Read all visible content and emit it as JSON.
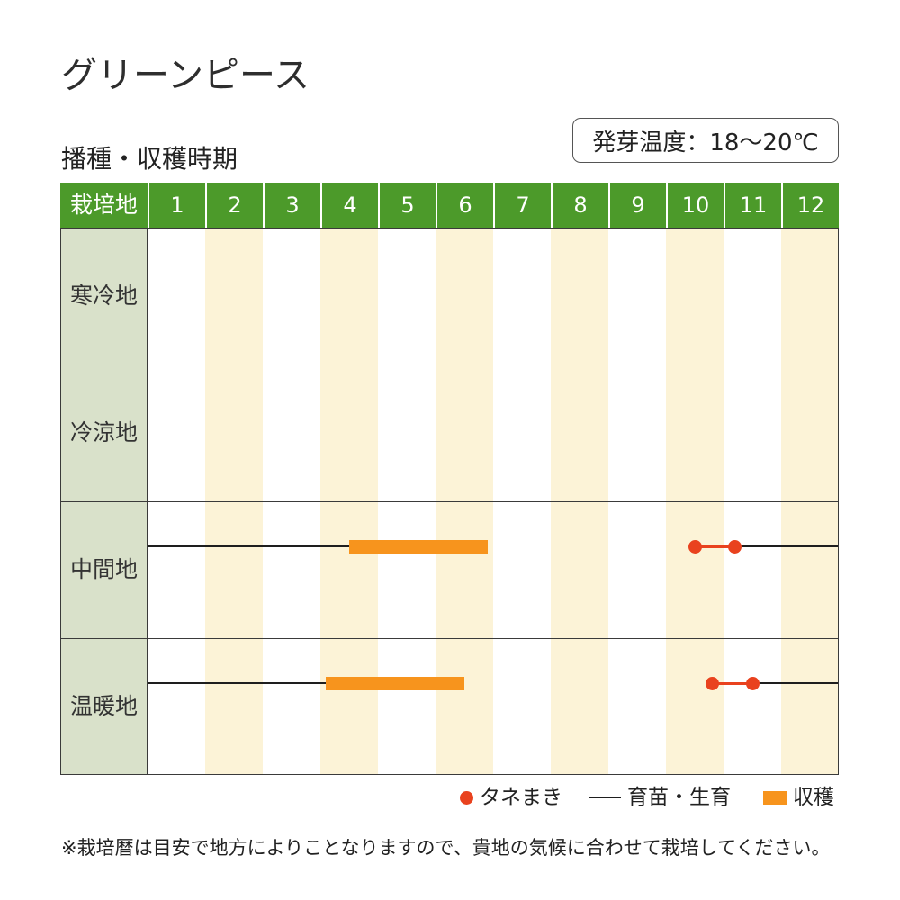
{
  "title": "グリーンピース",
  "germination_temp": "発芽温度：18～20℃",
  "colors": {
    "header": "#4c9a2a",
    "header_text": "#ffffff",
    "region_column": "#d9e1ca",
    "month_stripe": "#fcf3d7",
    "grid": "#3a3a3a"
  },
  "chart_data": {
    "type": "bar",
    "title": "播種・収穫時期",
    "row_header": "栽培地",
    "x_tick_labels": [
      "1",
      "2",
      "3",
      "4",
      "5",
      "6",
      "7",
      "8",
      "9",
      "10",
      "11",
      "12"
    ],
    "xlim": [
      1,
      13
    ],
    "categories": [
      "寒冷地",
      "冷涼地",
      "中間地",
      "温暖地"
    ],
    "series": [
      {
        "name": "タネまき",
        "icon": "dot-icon",
        "color": "#e9421e",
        "ranges": [
          [],
          [],
          [
            [
              10.5,
              11.2
            ]
          ],
          [
            [
              10.8,
              11.5
            ]
          ]
        ]
      },
      {
        "name": "育苗・生育",
        "icon": "line-icon",
        "color": "#1e1e1e",
        "ranges": [
          [],
          [],
          [
            [
              1,
              4.5
            ],
            [
              11.2,
              13
            ]
          ],
          [
            [
              1,
              4.1
            ],
            [
              11.5,
              13
            ]
          ]
        ]
      },
      {
        "name": "収穫",
        "icon": "bar-icon",
        "color": "#f7941d",
        "ranges": [
          [],
          [],
          [
            [
              4.5,
              6.9
            ]
          ],
          [
            [
              4.1,
              6.5
            ]
          ]
        ]
      }
    ],
    "legend": "bottom-right",
    "grid": true
  },
  "footnote": "※栽培暦は目安で地方によりことなりますので、貴地の気候に合わせて栽培してください。"
}
